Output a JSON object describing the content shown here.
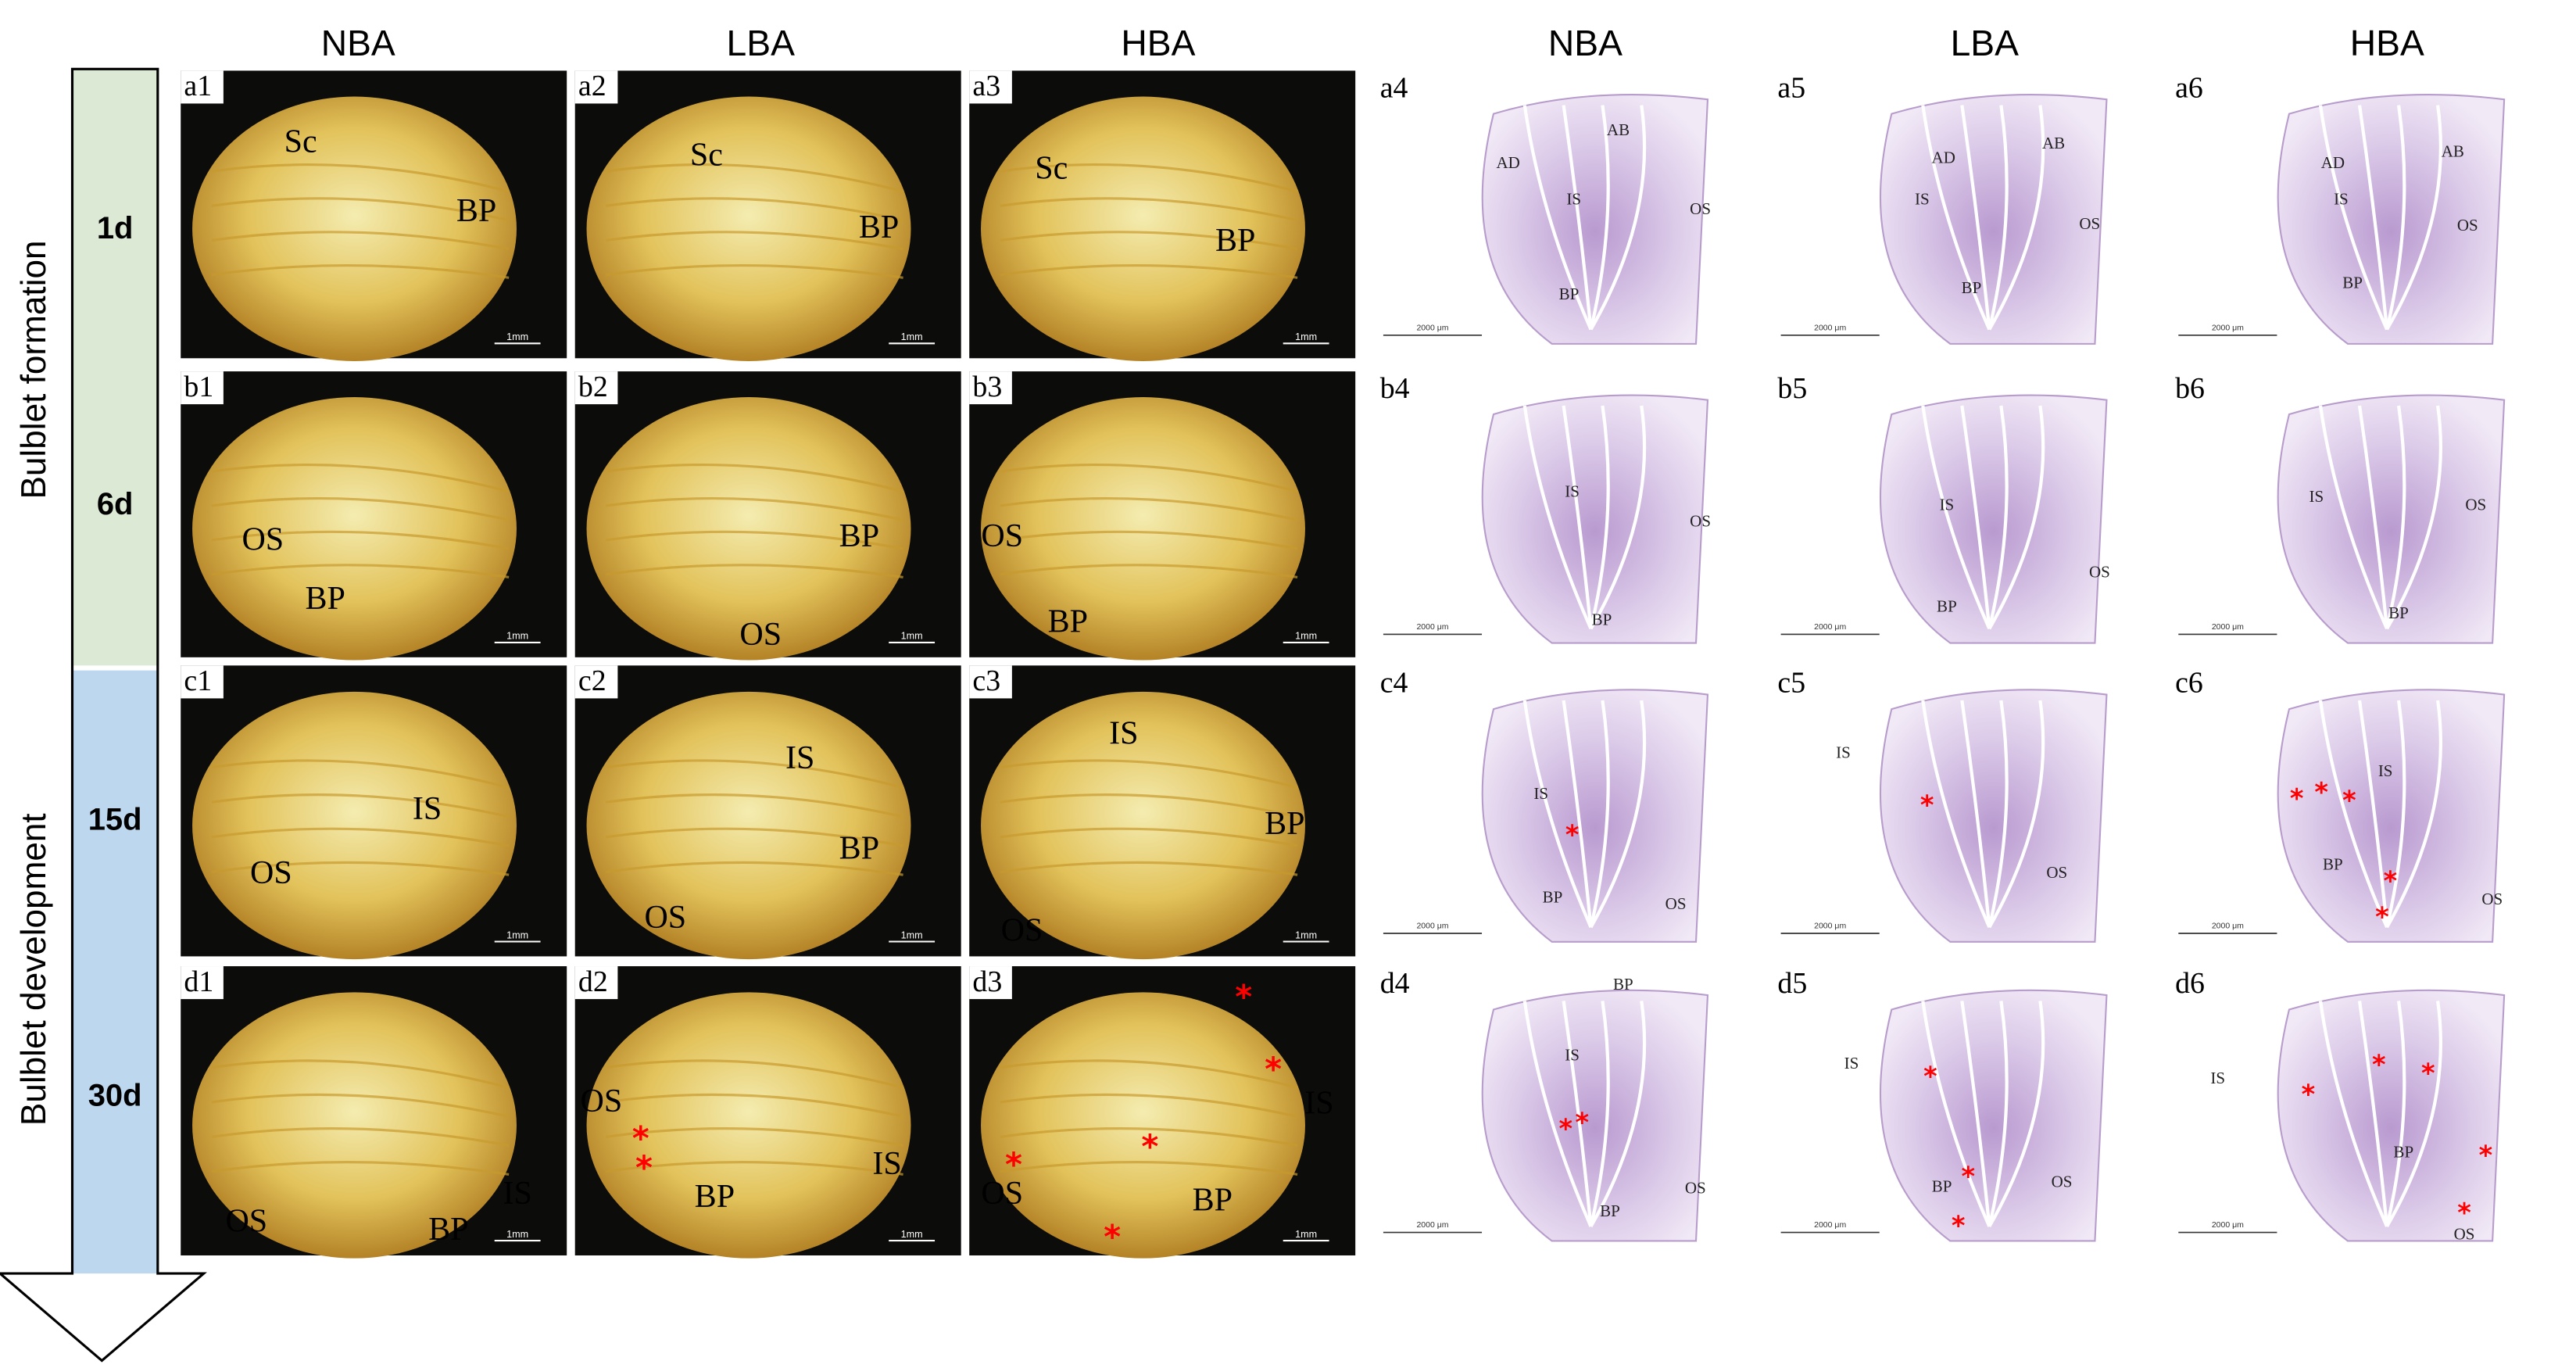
{
  "column_headers": [
    "NBA",
    "LBA",
    "HBA",
    "NBA",
    "LBA",
    "HBA"
  ],
  "stages": [
    {
      "label": "Bulblet formation",
      "days": [
        "1d",
        "6d"
      ]
    },
    {
      "label": "Bulblet development",
      "days": [
        "15d",
        "30d"
      ]
    }
  ],
  "panels": [
    {
      "label": "a1",
      "scale_bar": "1mm",
      "annotations": [
        "Sc",
        "BP"
      ]
    },
    {
      "label": "a2",
      "scale_bar": "1mm",
      "annotations": [
        "Sc",
        "BP"
      ]
    },
    {
      "label": "a3",
      "scale_bar": "1mm",
      "annotations": [
        "Sc",
        "BP"
      ]
    },
    {
      "label": "a4",
      "scale_bar": "2000 μm",
      "annotations": [
        "AD",
        "AB",
        "IS",
        "OS",
        "BP"
      ]
    },
    {
      "label": "a5",
      "scale_bar": "2000 μm",
      "annotations": [
        "AD",
        "AB",
        "IS",
        "OS",
        "BP"
      ]
    },
    {
      "label": "a6",
      "scale_bar": "2000 μm",
      "annotations": [
        "AD",
        "AB",
        "IS",
        "OS",
        "BP"
      ]
    },
    {
      "label": "b1",
      "scale_bar": "1mm",
      "annotations": [
        "OS",
        "BP"
      ]
    },
    {
      "label": "b2",
      "scale_bar": "1mm",
      "annotations": [
        "BP",
        "OS"
      ]
    },
    {
      "label": "b3",
      "scale_bar": "1mm",
      "annotations": [
        "OS",
        "BP"
      ]
    },
    {
      "label": "b4",
      "scale_bar": "2000 μm",
      "annotations": [
        "IS",
        "OS",
        "BP"
      ]
    },
    {
      "label": "b5",
      "scale_bar": "2000 μm",
      "annotations": [
        "IS",
        "OS",
        "BP"
      ]
    },
    {
      "label": "b6",
      "scale_bar": "2000 μm",
      "annotations": [
        "IS",
        "OS",
        "BP"
      ]
    },
    {
      "label": "c1",
      "scale_bar": "1mm",
      "annotations": [
        "OS",
        "IS"
      ]
    },
    {
      "label": "c2",
      "scale_bar": "1mm",
      "annotations": [
        "IS",
        "BP",
        "OS"
      ]
    },
    {
      "label": "c3",
      "scale_bar": "1mm",
      "annotations": [
        "IS",
        "BP",
        "OS"
      ]
    },
    {
      "label": "c4",
      "scale_bar": "2000 μm",
      "annotations": [
        "IS",
        "*",
        "BP",
        "OS"
      ]
    },
    {
      "label": "c5",
      "scale_bar": "2000 μm",
      "annotations": [
        "IS",
        "*",
        "OS"
      ]
    },
    {
      "label": "c6",
      "scale_bar": "2000 μm",
      "annotations": [
        "*",
        "*",
        "*",
        "IS",
        "BP",
        "*",
        "*",
        "OS"
      ]
    },
    {
      "label": "d1",
      "scale_bar": "1mm",
      "annotations": [
        "OS",
        "BP",
        "IS"
      ]
    },
    {
      "label": "d2",
      "scale_bar": "1mm",
      "annotations": [
        "OS",
        "*",
        "*",
        "BP",
        "IS"
      ]
    },
    {
      "label": "d3",
      "scale_bar": "1mm",
      "annotations": [
        "*",
        "*",
        "IS",
        "*",
        "*",
        "OS",
        "BP",
        "*"
      ]
    },
    {
      "label": "d4",
      "scale_bar": "2000 μm",
      "annotations": [
        "BP",
        "IS",
        "*",
        "*",
        "OS",
        "BP"
      ]
    },
    {
      "label": "d5",
      "scale_bar": "2000 μm",
      "annotations": [
        "IS",
        "*",
        "*",
        "BP",
        "OS",
        "*"
      ]
    },
    {
      "label": "d6",
      "scale_bar": "2000 μm",
      "annotations": [
        "IS",
        "*",
        "*",
        "*",
        "BP",
        "*",
        "*",
        "OS"
      ]
    }
  ]
}
